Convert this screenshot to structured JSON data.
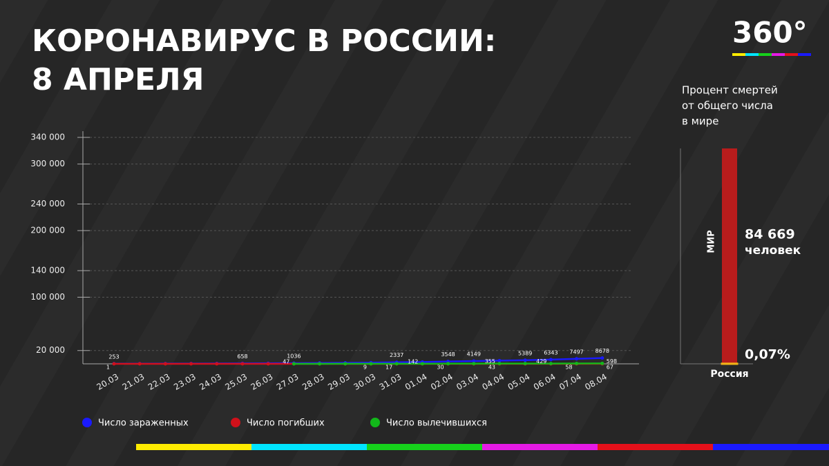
{
  "header": {
    "title_lines": [
      "КОРОНАВИРУС В РОССИИ:",
      "8 АПРЕЛЯ"
    ],
    "logo": "360°"
  },
  "chart_data": [
    {
      "type": "line",
      "categories": [
        "20.03",
        "21.03",
        "22.03",
        "23.03",
        "24.03",
        "25.03",
        "26.03",
        "27.03",
        "28.03",
        "29.03",
        "30.03",
        "31.03",
        "01.04",
        "02.04",
        "03.04",
        "04.04",
        "05.04",
        "06.04",
        "07.04",
        "08.04"
      ],
      "series": [
        {
          "name": "Число зараженных",
          "color": "#1a1aff",
          "values": [
            253,
            306,
            367,
            438,
            495,
            658,
            840,
            1036,
            1264,
            1534,
            1836,
            2337,
            2777,
            3548,
            4149,
            4731,
            5389,
            6343,
            7497,
            8678
          ],
          "value_labels": [
            "253",
            null,
            null,
            null,
            null,
            "658",
            null,
            "1036",
            null,
            null,
            null,
            "2337",
            null,
            "3548",
            "4149",
            null,
            "5389",
            "6343",
            "7497",
            "8678"
          ]
        },
        {
          "name": "Число погибших",
          "color": "#d0101a",
          "values": [
            1,
            1,
            1,
            1,
            1,
            3,
            3,
            4,
            4,
            8,
            9,
            17,
            24,
            30,
            34,
            43,
            45,
            47,
            58,
            67
          ],
          "value_labels": [
            "1",
            null,
            null,
            null,
            null,
            null,
            null,
            null,
            null,
            null,
            "9",
            "17",
            null,
            "30",
            null,
            "43",
            null,
            null,
            "58",
            "67"
          ]
        },
        {
          "name": "Число вылечившихся",
          "color": "#12b81a",
          "values": [
            null,
            null,
            null,
            null,
            null,
            null,
            null,
            47,
            64,
            66,
            73,
            121,
            142,
            211,
            235,
            355,
            398,
            429,
            494,
            598
          ],
          "value_labels": [
            null,
            null,
            null,
            null,
            null,
            null,
            null,
            "47",
            null,
            null,
            null,
            null,
            "142",
            null,
            null,
            "355",
            null,
            "429",
            null,
            "598"
          ]
        }
      ],
      "ylim": [
        0,
        340000
      ],
      "yticks": [
        {
          "value": 20000,
          "label": "20 000"
        },
        {
          "value": 100000,
          "label": "100 000"
        },
        {
          "value": 140000,
          "label": "140 000"
        },
        {
          "value": 200000,
          "label": "200 000"
        },
        {
          "value": 240000,
          "label": "240 000"
        },
        {
          "value": 300000,
          "label": "300 000"
        },
        {
          "value": 340000,
          "label": "340 000"
        }
      ],
      "grid": true
    },
    {
      "type": "bar",
      "title_lines": [
        "Процент смертей",
        "от общего числа",
        "в мире"
      ],
      "world_label": "МИР",
      "world_deaths": {
        "value": 84669,
        "label": "84 669"
      },
      "unit": "человек",
      "categories": [
        "Россия"
      ],
      "values": [
        0.07
      ],
      "value_labels": [
        "0,07%"
      ],
      "color": "#f2b318",
      "ylim": [
        0,
        100
      ]
    }
  ]
}
